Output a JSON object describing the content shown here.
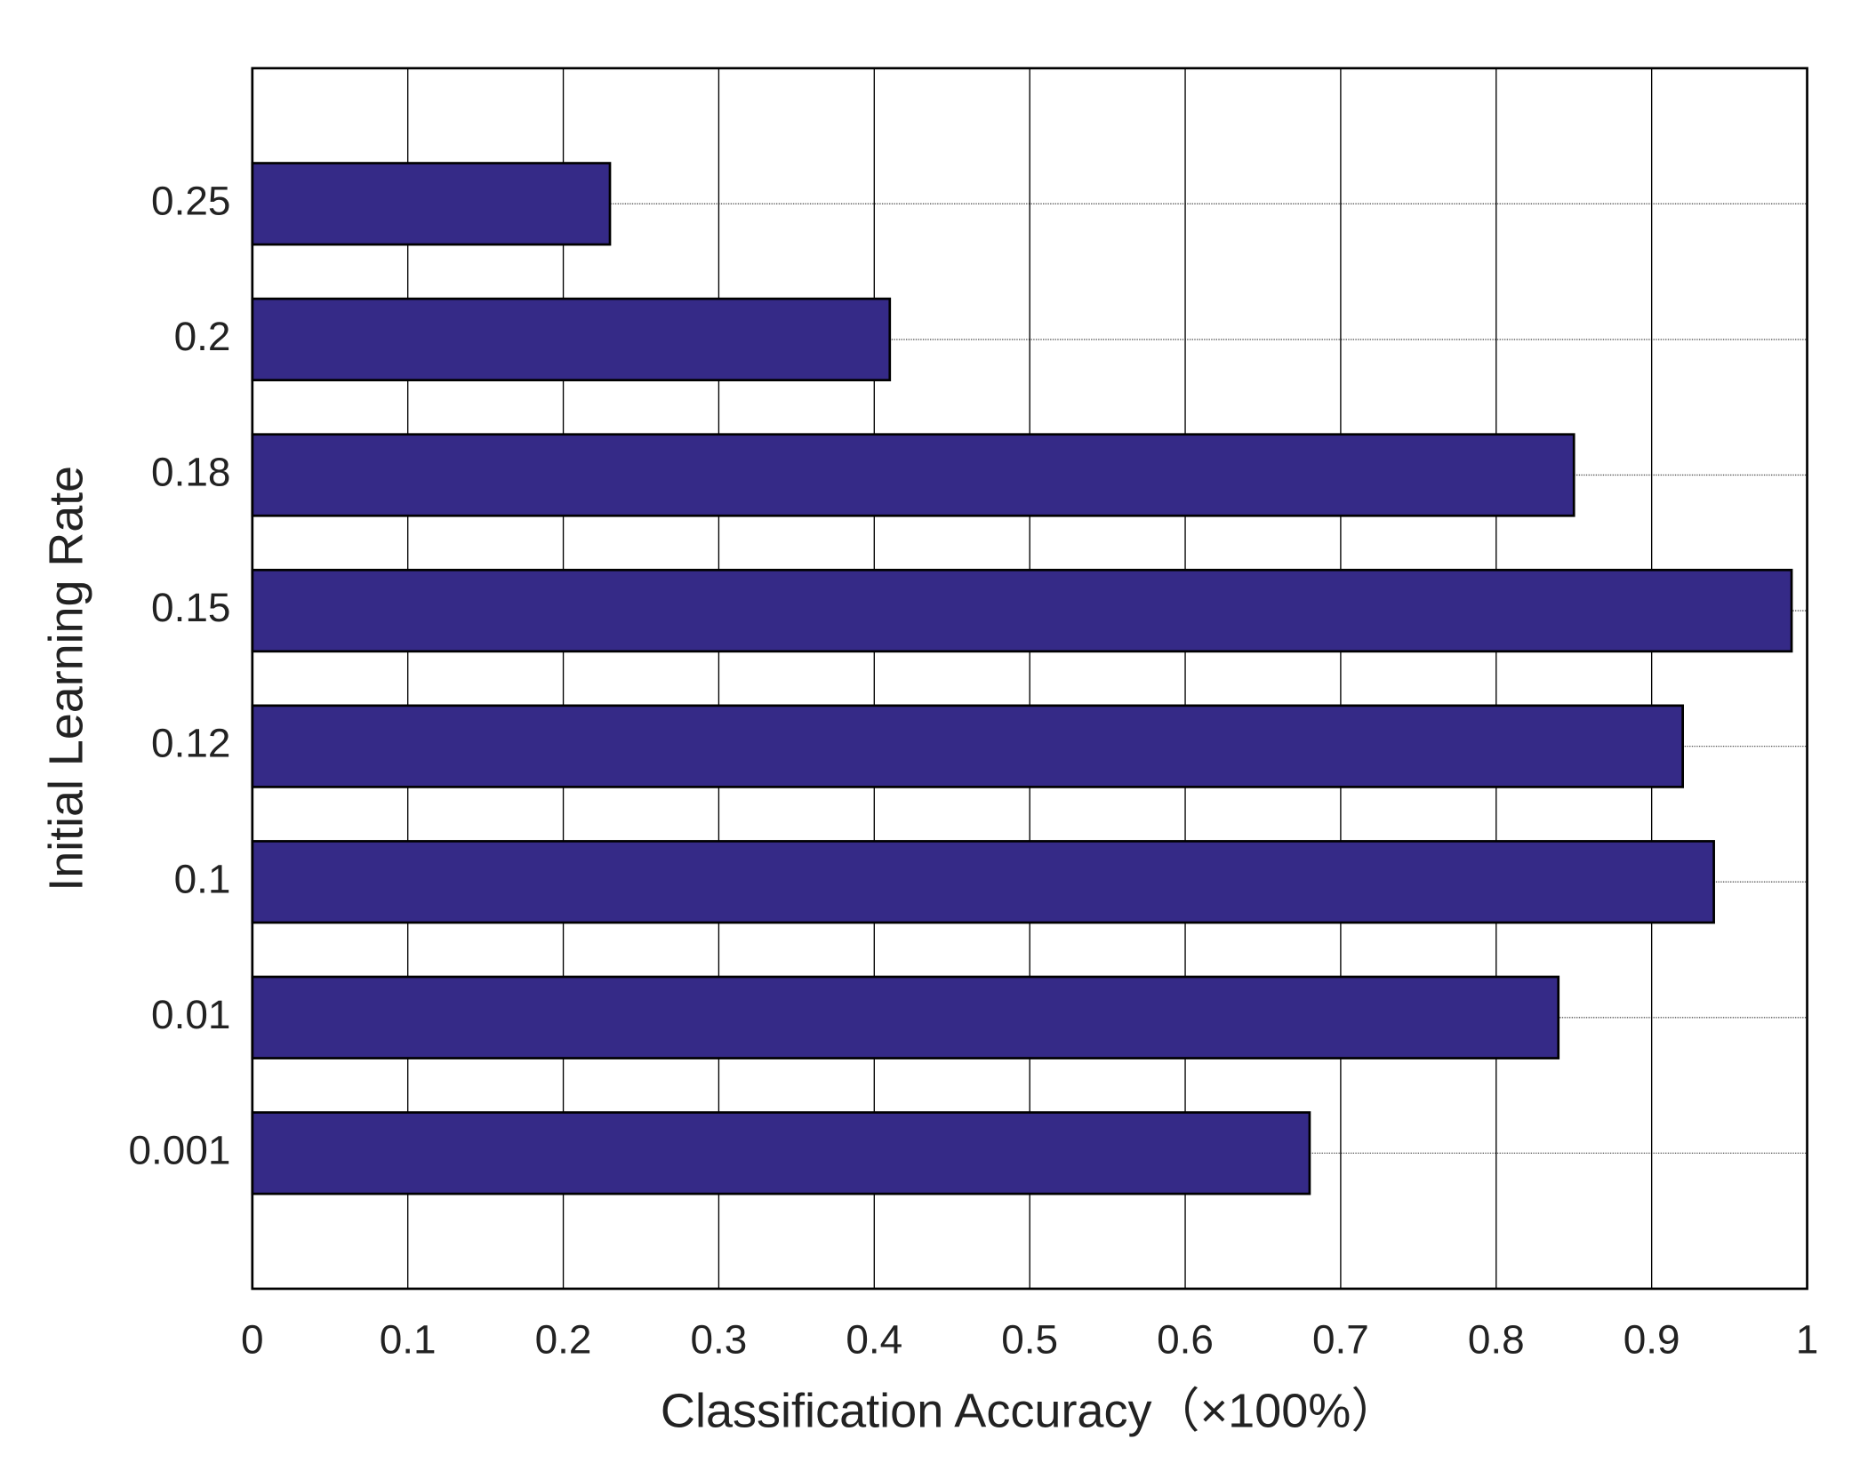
{
  "chart_data": {
    "type": "hbar",
    "x_label": "Classification Accuracy（×100%）",
    "y_label": "Initial Learning Rate",
    "categories": [
      "0.001",
      "0.01",
      "0.1",
      "0.12",
      "0.15",
      "0.18",
      "0.2",
      "0.25"
    ],
    "values": [
      0.68,
      0.84,
      0.94,
      0.92,
      0.99,
      0.85,
      0.41,
      0.23
    ],
    "color": "#352a87",
    "xlim": [
      0,
      1
    ],
    "xticks": [
      0,
      0.1,
      0.2,
      0.3,
      0.4,
      0.5,
      0.6,
      0.7,
      0.8,
      0.9,
      1
    ],
    "grid": true
  }
}
